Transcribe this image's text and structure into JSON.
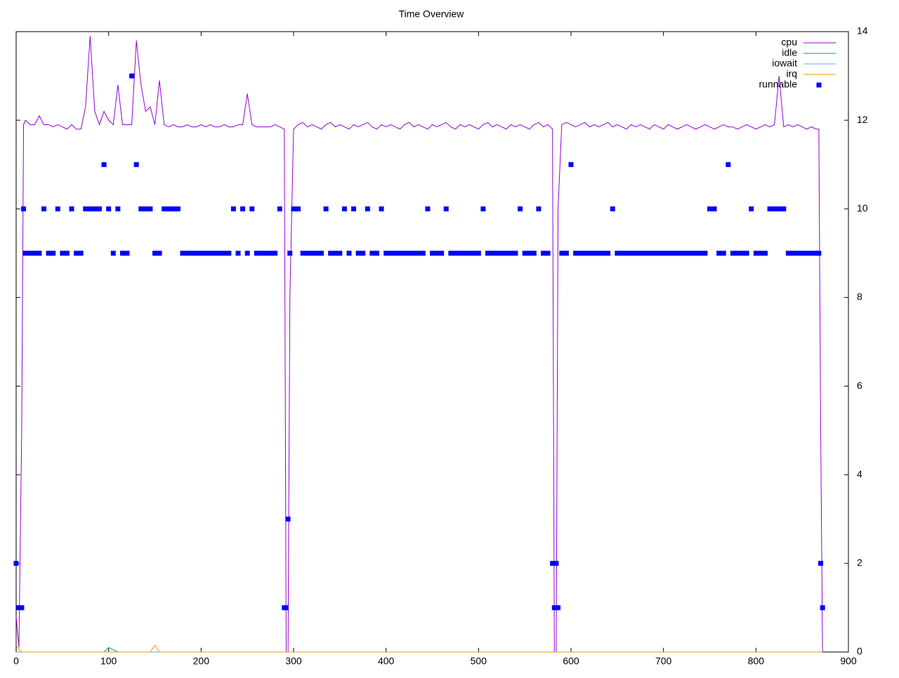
{
  "chart_data": {
    "type": "line",
    "title": "Time Overview",
    "xlim": [
      0,
      900
    ],
    "xticks": [
      0,
      100,
      200,
      300,
      400,
      500,
      600,
      700,
      800,
      900
    ],
    "ylim": [
      0,
      14
    ],
    "yticks": [
      0,
      2,
      4,
      6,
      8,
      10,
      12,
      14
    ],
    "legend": "top right",
    "grid": false,
    "x": [
      0,
      3,
      6,
      8,
      10,
      15,
      20,
      25,
      30,
      35,
      40,
      45,
      50,
      55,
      60,
      65,
      70,
      75,
      80,
      85,
      90,
      95,
      100,
      105,
      110,
      115,
      120,
      125,
      130,
      135,
      140,
      145,
      150,
      155,
      160,
      165,
      170,
      175,
      180,
      185,
      190,
      195,
      200,
      205,
      210,
      215,
      220,
      225,
      230,
      235,
      240,
      245,
      250,
      255,
      260,
      265,
      270,
      275,
      280,
      285,
      290,
      292,
      294,
      296,
      300,
      305,
      310,
      315,
      320,
      325,
      330,
      335,
      340,
      345,
      350,
      355,
      360,
      365,
      370,
      375,
      380,
      385,
      390,
      395,
      400,
      405,
      410,
      415,
      420,
      425,
      430,
      435,
      440,
      445,
      450,
      455,
      460,
      465,
      470,
      475,
      480,
      485,
      490,
      495,
      500,
      505,
      510,
      515,
      520,
      525,
      530,
      535,
      540,
      545,
      550,
      555,
      560,
      565,
      570,
      575,
      580,
      582,
      584,
      586,
      590,
      595,
      600,
      605,
      610,
      615,
      620,
      625,
      630,
      635,
      640,
      645,
      650,
      655,
      660,
      665,
      670,
      675,
      680,
      685,
      690,
      695,
      700,
      705,
      710,
      715,
      720,
      725,
      730,
      735,
      740,
      745,
      750,
      755,
      760,
      765,
      770,
      775,
      780,
      785,
      790,
      795,
      800,
      805,
      810,
      815,
      820,
      825,
      830,
      835,
      840,
      845,
      850,
      855,
      860,
      865,
      868,
      870,
      872
    ],
    "series": [
      {
        "name": "cpu",
        "color": "#9400d3",
        "style": "line",
        "values": [
          0.8,
          0.1,
          5,
          11.9,
          12.0,
          11.9,
          11.9,
          12.1,
          11.9,
          11.9,
          11.85,
          11.9,
          11.85,
          11.8,
          11.9,
          11.8,
          11.8,
          12.3,
          13.9,
          12.2,
          11.9,
          12.2,
          12.0,
          11.9,
          12.8,
          11.9,
          11.9,
          11.9,
          13.8,
          12.8,
          12.2,
          12.3,
          11.9,
          12.9,
          11.9,
          11.85,
          11.9,
          11.85,
          11.85,
          11.9,
          11.85,
          11.85,
          11.9,
          11.85,
          11.9,
          11.85,
          11.85,
          11.9,
          11.85,
          11.85,
          11.9,
          11.9,
          12.6,
          11.9,
          11.85,
          11.85,
          11.85,
          11.85,
          11.9,
          11.85,
          11.8,
          0,
          0,
          8,
          11.8,
          11.9,
          11.95,
          11.85,
          11.9,
          11.85,
          11.8,
          11.9,
          11.95,
          11.85,
          11.9,
          11.85,
          11.8,
          11.9,
          11.85,
          11.9,
          11.95,
          11.85,
          11.8,
          11.9,
          11.85,
          11.9,
          11.85,
          11.8,
          11.9,
          11.95,
          11.85,
          11.9,
          11.85,
          11.8,
          11.9,
          11.85,
          11.9,
          11.95,
          11.85,
          11.8,
          11.9,
          11.85,
          11.9,
          11.85,
          11.8,
          11.9,
          11.95,
          11.85,
          11.9,
          11.85,
          11.8,
          11.9,
          11.85,
          11.9,
          11.85,
          11.8,
          11.9,
          11.95,
          11.85,
          11.9,
          11.8,
          0,
          0,
          10,
          11.9,
          11.95,
          11.9,
          11.85,
          11.9,
          11.95,
          11.85,
          11.9,
          11.85,
          11.9,
          11.95,
          11.85,
          11.9,
          11.85,
          11.8,
          11.9,
          11.85,
          11.9,
          11.85,
          11.8,
          11.9,
          11.85,
          11.8,
          11.9,
          11.85,
          11.8,
          11.85,
          11.9,
          11.85,
          11.8,
          11.85,
          11.9,
          11.85,
          11.8,
          11.85,
          11.9,
          11.85,
          11.85,
          11.8,
          11.85,
          11.9,
          11.85,
          11.8,
          11.85,
          11.9,
          11.85,
          11.9,
          13.0,
          11.85,
          11.9,
          11.85,
          11.9,
          11.85,
          11.8,
          11.85,
          11.8,
          11.8,
          5,
          0
        ]
      },
      {
        "name": "idle",
        "color": "#009e73",
        "style": "line",
        "values": [
          0,
          0,
          0,
          0,
          0,
          0,
          0,
          0,
          0,
          0,
          0,
          0,
          0,
          0,
          0,
          0,
          0,
          0,
          0,
          0,
          0,
          0,
          0.1,
          0.05,
          0,
          0,
          0,
          0,
          0,
          0,
          0,
          0,
          0,
          0,
          0,
          0,
          0,
          0,
          0,
          0,
          0,
          0,
          0,
          0,
          0,
          0,
          0,
          0,
          0,
          0,
          0,
          0,
          0,
          0,
          0,
          0,
          0,
          0,
          0,
          0,
          0,
          0,
          0,
          0,
          0,
          0,
          0,
          0,
          0,
          0,
          0,
          0,
          0,
          0,
          0,
          0,
          0,
          0,
          0,
          0,
          0,
          0,
          0,
          0,
          0,
          0,
          0,
          0,
          0,
          0,
          0,
          0,
          0,
          0,
          0,
          0,
          0,
          0,
          0,
          0,
          0,
          0,
          0,
          0,
          0,
          0,
          0,
          0,
          0,
          0,
          0,
          0,
          0,
          0,
          0,
          0,
          0,
          0,
          0,
          0,
          0,
          0,
          0,
          0,
          0,
          0,
          0,
          0,
          0,
          0,
          0,
          0,
          0,
          0,
          0,
          0,
          0,
          0,
          0,
          0,
          0,
          0,
          0,
          0,
          0,
          0,
          0,
          0,
          0,
          0,
          0,
          0,
          0,
          0,
          0,
          0,
          0,
          0,
          0,
          0,
          0,
          0,
          0,
          0,
          0,
          0,
          0,
          0,
          0,
          0,
          0,
          0,
          0,
          0,
          0,
          0,
          0,
          0,
          0,
          0,
          0,
          0,
          0
        ]
      },
      {
        "name": "iowait",
        "color": "#56b4e9",
        "style": "line",
        "values": [
          0,
          0,
          0,
          0,
          0,
          0,
          0,
          0,
          0,
          0,
          0,
          0,
          0,
          0,
          0,
          0,
          0,
          0,
          0,
          0,
          0,
          0,
          0,
          0,
          0,
          0,
          0,
          0,
          0,
          0,
          0,
          0,
          0,
          0,
          0,
          0,
          0,
          0,
          0,
          0,
          0,
          0,
          0,
          0,
          0,
          0,
          0,
          0,
          0,
          0,
          0,
          0,
          0,
          0,
          0,
          0,
          0,
          0,
          0,
          0,
          0,
          0,
          0,
          0,
          0,
          0,
          0,
          0,
          0,
          0,
          0,
          0,
          0,
          0,
          0,
          0,
          0,
          0,
          0,
          0,
          0,
          0,
          0,
          0,
          0,
          0,
          0,
          0,
          0,
          0,
          0,
          0,
          0,
          0,
          0,
          0,
          0,
          0,
          0,
          0,
          0,
          0,
          0,
          0,
          0,
          0,
          0,
          0,
          0,
          0,
          0,
          0,
          0,
          0,
          0,
          0,
          0,
          0,
          0,
          0,
          0,
          0,
          0,
          0,
          0,
          0,
          0,
          0,
          0,
          0,
          0,
          0,
          0,
          0,
          0,
          0,
          0,
          0,
          0,
          0,
          0,
          0,
          0,
          0,
          0,
          0,
          0,
          0,
          0,
          0,
          0,
          0,
          0,
          0,
          0,
          0,
          0,
          0,
          0,
          0,
          0,
          0,
          0,
          0,
          0,
          0,
          0,
          0,
          0,
          0,
          0,
          0,
          0,
          0,
          0,
          0,
          0,
          0,
          0,
          0,
          0,
          0,
          0
        ]
      },
      {
        "name": "irq",
        "color": "#e69f00",
        "style": "line",
        "values": [
          0.15,
          0.05,
          0,
          0,
          0,
          0,
          0,
          0,
          0,
          0,
          0,
          0,
          0,
          0,
          0,
          0,
          0,
          0,
          0,
          0,
          0,
          0,
          0,
          0,
          0,
          0,
          0,
          0,
          0,
          0,
          0,
          0,
          0.15,
          0,
          0,
          0,
          0,
          0,
          0,
          0,
          0,
          0,
          0,
          0,
          0,
          0,
          0,
          0,
          0,
          0,
          0,
          0,
          0,
          0,
          0,
          0,
          0,
          0,
          0,
          0,
          0,
          0,
          0,
          0,
          0,
          0,
          0,
          0,
          0,
          0,
          0,
          0,
          0,
          0,
          0,
          0,
          0,
          0,
          0,
          0,
          0,
          0,
          0,
          0,
          0,
          0,
          0,
          0,
          0,
          0,
          0,
          0,
          0,
          0,
          0,
          0,
          0,
          0,
          0,
          0,
          0,
          0,
          0,
          0,
          0,
          0,
          0,
          0,
          0,
          0,
          0,
          0,
          0,
          0,
          0,
          0,
          0,
          0,
          0,
          0,
          0,
          0,
          0,
          0,
          0,
          0,
          0,
          0,
          0,
          0,
          0,
          0,
          0,
          0,
          0,
          0,
          0,
          0,
          0,
          0,
          0,
          0,
          0,
          0,
          0,
          0,
          0,
          0,
          0,
          0,
          0,
          0,
          0,
          0,
          0,
          0,
          0,
          0,
          0,
          0,
          0,
          0,
          0,
          0,
          0,
          0,
          0,
          0,
          0,
          0,
          0,
          0,
          0,
          0,
          0,
          0,
          0,
          0,
          0,
          0,
          0,
          0,
          0
        ]
      },
      {
        "name": "runnable",
        "color": "#0000ff",
        "style": "points",
        "values": [
          2,
          1,
          1,
          10,
          9,
          9,
          9,
          9,
          10,
          9,
          9,
          10,
          9,
          9,
          10,
          9,
          9,
          10,
          10,
          10,
          10,
          11,
          10,
          9,
          10,
          9,
          9,
          13,
          11,
          10,
          10,
          10,
          9,
          9,
          10,
          10,
          10,
          10,
          9,
          9,
          9,
          9,
          9,
          9,
          9,
          9,
          9,
          9,
          9,
          10,
          9,
          10,
          9,
          10,
          9,
          9,
          9,
          9,
          9,
          10,
          1,
          1,
          3,
          9,
          10,
          10,
          9,
          9,
          9,
          9,
          9,
          10,
          9,
          9,
          9,
          10,
          9,
          10,
          9,
          9,
          10,
          9,
          9,
          10,
          9,
          9,
          9,
          9,
          9,
          9,
          9,
          9,
          9,
          10,
          9,
          9,
          9,
          10,
          9,
          9,
          9,
          9,
          9,
          9,
          9,
          10,
          9,
          9,
          9,
          9,
          9,
          9,
          9,
          10,
          9,
          9,
          9,
          10,
          9,
          9,
          2,
          1,
          2,
          1,
          9,
          9,
          11,
          9,
          9,
          9,
          9,
          9,
          9,
          9,
          9,
          10,
          9,
          9,
          9,
          9,
          9,
          9,
          9,
          9,
          9,
          9,
          9,
          9,
          9,
          9,
          9,
          9,
          9,
          9,
          9,
          9,
          10,
          10,
          9,
          9,
          11,
          9,
          9,
          9,
          9,
          10,
          9,
          9,
          9,
          10,
          10,
          10,
          10,
          9,
          9,
          9,
          9,
          9,
          9,
          9,
          9,
          2,
          1
        ]
      }
    ]
  }
}
